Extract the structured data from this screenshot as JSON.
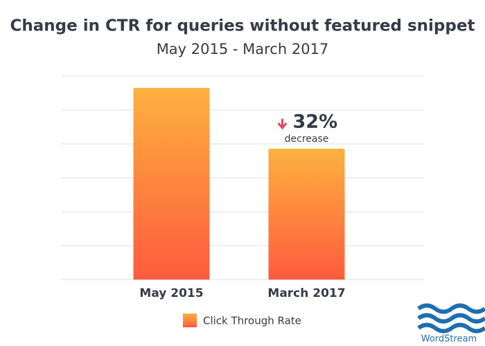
{
  "chart_data": {
    "type": "bar",
    "title": "Change in CTR for queries without featured snippet",
    "subtitle": "May 2015 - March 2017",
    "categories": [
      "May 2015",
      "March 2017"
    ],
    "series": [
      {
        "name": "Click Through Rate",
        "color": "#fdb13f",
        "gradient_end": "#ff5b3d",
        "values": [
          5.65,
          3.86
        ]
      }
    ],
    "ylim": [
      0,
      6
    ],
    "yticks": [
      0,
      1,
      2,
      3,
      4,
      5,
      6
    ],
    "grid": true,
    "annotation": {
      "text": "32%",
      "subtext": "decrease"
    },
    "legend": "bottom"
  },
  "logo": "WordStream"
}
